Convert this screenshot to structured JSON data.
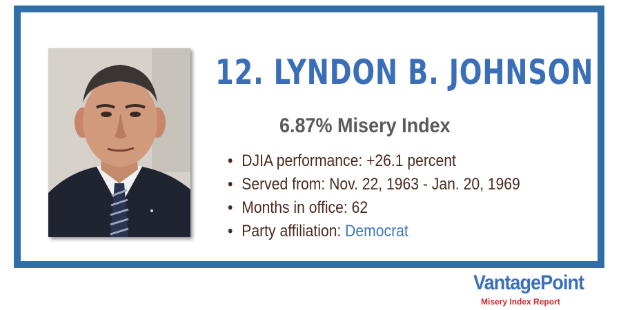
{
  "card": {
    "title": "12. LYNDON B. JOHNSON",
    "subtitle": "6.87% Misery Index",
    "facts": [
      {
        "label": "DJIA performance:",
        "value": "+26.1 percent"
      },
      {
        "label": "Served from:",
        "value": "Nov. 22, 1963 - Jan. 20, 1969"
      },
      {
        "label": "Months in office:",
        "value": "62"
      },
      {
        "label": "Party affiliation:",
        "value": "Democrat"
      }
    ]
  },
  "branding": {
    "logo_text": "VantagePoint",
    "tagline": "Misery Index Report"
  },
  "colors": {
    "frame": "#2f6ea6",
    "title": "#3a6fb8",
    "fact_text": "#4a2a1e",
    "party_value": "#3a78c9",
    "tagline": "#d0262c"
  },
  "icons": [
    "portrait-photo"
  ]
}
